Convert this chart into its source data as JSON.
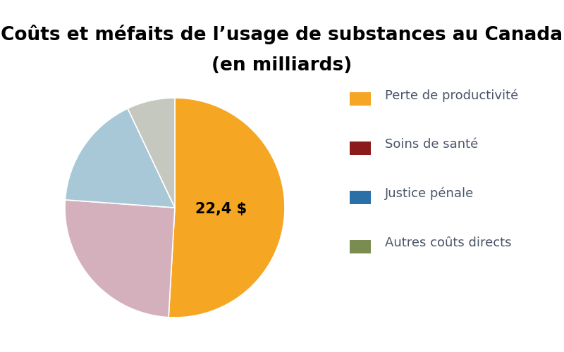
{
  "title_line1": "Coûts et méfaits de l’usage de substances au Canada",
  "title_line2": "(en milliards)",
  "slices": [
    {
      "label": "Perte de productivité",
      "value": 22.4,
      "color": "#F5A623",
      "legend_color": "#F5A623"
    },
    {
      "label": "Soins de santé",
      "value": 11.1,
      "color": "#D4B0BC",
      "legend_color": "#8B1A1A"
    },
    {
      "label": "Justice pénale",
      "value": 7.4,
      "color": "#A8C8D8",
      "legend_color": "#2A6FA8"
    },
    {
      "label": "Autres coûts directs",
      "value": 3.1,
      "color": "#C5C8BE",
      "legend_color": "#7A8C50"
    }
  ],
  "annotation_text": "22,4 $",
  "annotation_fontsize": 15,
  "title_fontsize": 19,
  "legend_fontsize": 13,
  "legend_text_color": "#4A5568",
  "background_color": "#FFFFFF"
}
